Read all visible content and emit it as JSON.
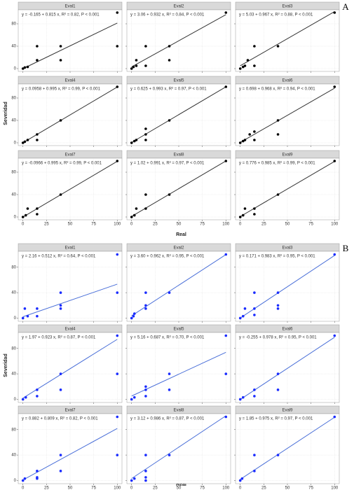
{
  "chart_data": [
    {
      "type": "scatter",
      "label": "A",
      "xlabel": "Real",
      "ylabel": "Severidad",
      "color": "#000000",
      "line_color": "#333333",
      "xlim": [
        -5,
        105
      ],
      "ylim": [
        -5,
        105
      ],
      "xticks": [
        0,
        25,
        50,
        75,
        100
      ],
      "yticks": [
        0,
        40,
        80
      ],
      "grid": true,
      "panels": [
        {
          "title": "Eval1",
          "annotation": "y = -0.165 + 0.815 x, R² = 0.82, P < 0.001",
          "intercept": -0.165,
          "slope": 0.815,
          "x": [
            0,
            2,
            5,
            15,
            15,
            40,
            40,
            100,
            100
          ],
          "y": [
            0,
            2,
            3,
            15,
            40,
            15,
            40,
            100,
            40
          ]
        },
        {
          "title": "Eval2",
          "annotation": "y = 3.06 + 0.932 x, R² = 0.84, P < 0.001",
          "intercept": 3.06,
          "slope": 0.932,
          "x": [
            0,
            2,
            5,
            5,
            15,
            15,
            40,
            40,
            100
          ],
          "y": [
            0,
            3,
            5,
            15,
            5,
            40,
            15,
            40,
            100
          ]
        },
        {
          "title": "Eval3",
          "annotation": "y = 5.03 + 0.967 x, R² = 0.88, P < 0.001",
          "intercept": 5.03,
          "slope": 0.967,
          "x": [
            0,
            3,
            5,
            8,
            15,
            15,
            40,
            100
          ],
          "y": [
            0,
            3,
            5,
            15,
            5,
            40,
            40,
            100
          ]
        },
        {
          "title": "Eval4",
          "annotation": "y = 0.0958 + 0.995 x, R² = 0.99, P < 0.001",
          "intercept": 0.0958,
          "slope": 0.995,
          "x": [
            0,
            2,
            5,
            15,
            15,
            40,
            100
          ],
          "y": [
            0,
            2,
            5,
            15,
            5,
            40,
            100
          ]
        },
        {
          "title": "Eval5",
          "annotation": "y = 0.625 + 0.993 x, R² = 0.97, P < 0.001",
          "intercept": 0.625,
          "slope": 0.993,
          "x": [
            0,
            3,
            5,
            15,
            15,
            15,
            40,
            100
          ],
          "y": [
            0,
            3,
            5,
            15,
            5,
            25,
            40,
            100
          ]
        },
        {
          "title": "Eval6",
          "annotation": "y = 0.698 + 0.968 x, R² = 0.94, P < 0.001",
          "intercept": 0.698,
          "slope": 0.968,
          "x": [
            0,
            3,
            5,
            10,
            15,
            15,
            40,
            40,
            100
          ],
          "y": [
            0,
            3,
            5,
            15,
            5,
            20,
            40,
            15,
            100
          ]
        },
        {
          "title": "Eval7",
          "annotation": "y = -0.0966 + 0.995 x, R² = 0.99, P < 0.001",
          "intercept": -0.0966,
          "slope": 0.995,
          "x": [
            0,
            3,
            5,
            15,
            15,
            40,
            100
          ],
          "y": [
            0,
            3,
            15,
            5,
            15,
            40,
            100
          ]
        },
        {
          "title": "Eval8",
          "annotation": "y = 1.02 + 0.991 x, R² = 0.97, P < 0.001",
          "intercept": 1.02,
          "slope": 0.991,
          "x": [
            0,
            3,
            5,
            15,
            15,
            40,
            100
          ],
          "y": [
            0,
            3,
            15,
            40,
            15,
            40,
            100
          ]
        },
        {
          "title": "Eval9",
          "annotation": "y = 0.776 + 0.985 x, R² = 0.99, P < 0.001",
          "intercept": 0.776,
          "slope": 0.985,
          "x": [
            0,
            3,
            5,
            15,
            15,
            40,
            100
          ],
          "y": [
            0,
            3,
            15,
            5,
            15,
            40,
            100
          ]
        }
      ]
    },
    {
      "type": "scatter",
      "label": "B",
      "xlabel": "Real",
      "ylabel": "Severidad",
      "color": "#1a2cff",
      "line_color": "#4a6fd8",
      "xlim": [
        -5,
        105
      ],
      "ylim": [
        -5,
        105
      ],
      "xticks": [
        0,
        25,
        50,
        75,
        100
      ],
      "yticks": [
        0,
        40,
        80
      ],
      "grid": true,
      "panels": [
        {
          "title": "Eval1",
          "annotation": "y = 2.16 + 0.512 x, R² = 0.64, P < 0.001",
          "intercept": 2.16,
          "slope": 0.512,
          "x": [
            0,
            2,
            5,
            15,
            15,
            40,
            40,
            40,
            100,
            100
          ],
          "y": [
            0,
            15,
            3,
            15,
            3,
            40,
            15,
            20,
            100,
            40
          ]
        },
        {
          "title": "Eval2",
          "annotation": "y = 3.60 + 0.962 x, R² = 0.95, P < 0.001",
          "intercept": 3.6,
          "slope": 0.962,
          "x": [
            0,
            2,
            3,
            15,
            15,
            15,
            40,
            100
          ],
          "y": [
            0,
            3,
            7,
            15,
            20,
            40,
            40,
            100
          ]
        },
        {
          "title": "Eval3",
          "annotation": "y = 0.171 + 0.983 x, R² = 0.95, P < 0.001",
          "intercept": 0.171,
          "slope": 0.983,
          "x": [
            0,
            3,
            5,
            15,
            15,
            15,
            40,
            40,
            40,
            100
          ],
          "y": [
            0,
            3,
            15,
            15,
            5,
            40,
            15,
            20,
            40,
            100
          ]
        },
        {
          "title": "Eval4",
          "annotation": "y = 1.97 + 0.923 x, R² = 0.87, P < 0.001",
          "intercept": 1.97,
          "slope": 0.923,
          "x": [
            0,
            3,
            15,
            15,
            40,
            40,
            100,
            100
          ],
          "y": [
            0,
            3,
            15,
            5,
            40,
            15,
            100,
            40
          ]
        },
        {
          "title": "Eval5",
          "annotation": "y = 5.16 + 0.687 x, R² = 0.70, P < 0.001",
          "intercept": 5.16,
          "slope": 0.687,
          "x": [
            0,
            3,
            15,
            15,
            15,
            40,
            40,
            100,
            100
          ],
          "y": [
            0,
            3,
            15,
            5,
            20,
            40,
            15,
            100,
            40
          ]
        },
        {
          "title": "Eval6",
          "annotation": "y = -0.255 + 0.978 x, R² = 0.95, P < 0.001",
          "intercept": -0.255,
          "slope": 0.978,
          "x": [
            0,
            3,
            15,
            15,
            40,
            40,
            100
          ],
          "y": [
            0,
            3,
            15,
            5,
            40,
            15,
            100
          ]
        },
        {
          "title": "Eval7",
          "annotation": "y = 0.882 + 0.809 x, R² = 0.82, P < 0.001",
          "intercept": 0.882,
          "slope": 0.809,
          "x": [
            0,
            2,
            15,
            15,
            15,
            40,
            40,
            100,
            100
          ],
          "y": [
            0,
            3,
            15,
            5,
            3,
            40,
            15,
            100,
            40
          ]
        },
        {
          "title": "Eval8",
          "annotation": "y = 3.12 + 0.986 x, R² = 0.87, P < 0.001",
          "intercept": 3.12,
          "slope": 0.986,
          "x": [
            0,
            3,
            15,
            15,
            15,
            15,
            40,
            100
          ],
          "y": [
            0,
            3,
            15,
            5,
            0,
            40,
            40,
            100
          ]
        },
        {
          "title": "Eval9",
          "annotation": "y = 1.85 + 0.975 x, R² = 0.97, P < 0.001",
          "intercept": 1.85,
          "slope": 0.975,
          "x": [
            0,
            2,
            15,
            15,
            40,
            100
          ],
          "y": [
            0,
            3,
            15,
            40,
            40,
            100
          ]
        }
      ]
    }
  ]
}
